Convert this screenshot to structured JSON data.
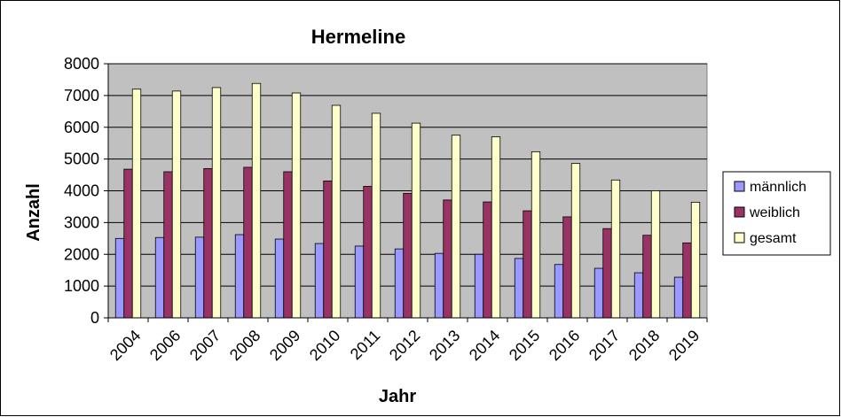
{
  "chart_data": {
    "type": "bar",
    "title": "Hermeline",
    "xlabel": "Jahr",
    "ylabel": "Anzahl",
    "categories": [
      "2004",
      "2006",
      "2007",
      "2008",
      "2009",
      "2010",
      "2011",
      "2012",
      "2013",
      "2014",
      "2015",
      "2016",
      "2017",
      "2018",
      "2019"
    ],
    "series": [
      {
        "name": "männlich",
        "color": "#9999ff",
        "values": [
          2500,
          2530,
          2540,
          2620,
          2480,
          2340,
          2260,
          2170,
          2030,
          2000,
          1870,
          1680,
          1560,
          1420,
          1280
        ]
      },
      {
        "name": "weiblich",
        "color": "#993366",
        "values": [
          4680,
          4600,
          4700,
          4740,
          4600,
          4310,
          4140,
          3920,
          3710,
          3650,
          3370,
          3180,
          2810,
          2600,
          2360
        ]
      },
      {
        "name": "gesamt",
        "color": "#ffffcc",
        "values": [
          7200,
          7140,
          7250,
          7380,
          7080,
          6690,
          6440,
          6130,
          5750,
          5700,
          5230,
          4860,
          4340,
          4000,
          3640
        ]
      }
    ],
    "ylim": [
      0,
      8000
    ],
    "yticks": [
      0,
      1000,
      2000,
      3000,
      4000,
      5000,
      6000,
      7000,
      8000
    ],
    "grid": true,
    "plot_background": "#c0c0c0",
    "legend_position": "right"
  }
}
